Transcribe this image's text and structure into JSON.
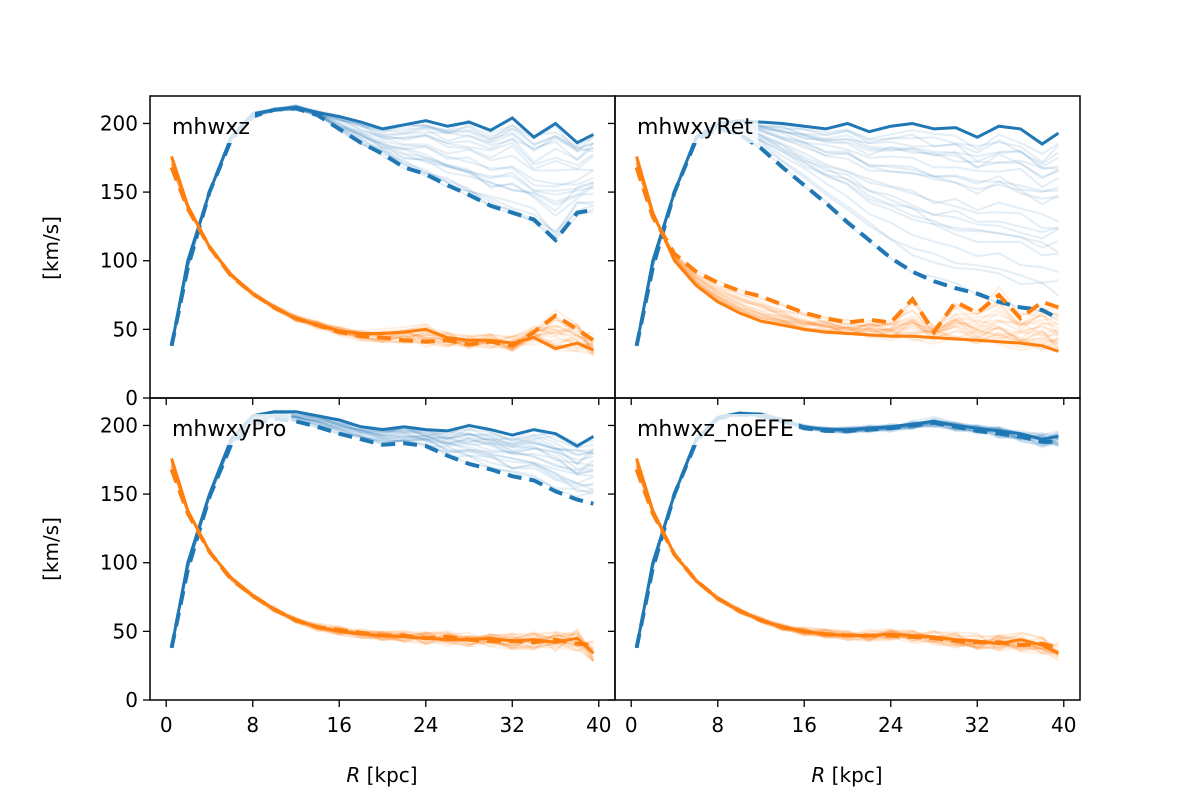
{
  "figure": {
    "y_axis_label": "[km/s]",
    "x_axis_label_italic": "R",
    "x_axis_label_rest": " [kpc]"
  },
  "chart_data": {
    "type": "line",
    "layout": "2x2 grid, shared axes",
    "x_label": "R [kpc]",
    "y_label": "[km/s]",
    "xlim": [
      -1.5,
      41.5
    ],
    "ylim": [
      0,
      220
    ],
    "x_ticks": [
      0,
      8,
      16,
      24,
      32,
      40
    ],
    "y_ticks": [
      0,
      50,
      100,
      150,
      200
    ],
    "colors": {
      "rising_series": "#1f77b4",
      "falling_series": "#ff7f0e"
    },
    "panels": [
      {
        "title": "mhwxz",
        "x": [
          0.5,
          2,
          4,
          6,
          8,
          10,
          12,
          14,
          16,
          18,
          20,
          22,
          24,
          26,
          28,
          30,
          32,
          34,
          36,
          38,
          39.5
        ],
        "series": [
          {
            "color": "blue",
            "style": "solid",
            "values": [
              38,
              100,
              150,
              190,
              207,
              210,
              212,
              208,
              205,
              201,
              196,
              199,
              202,
              198,
              201,
              195,
              204,
              190,
              200,
              186,
              192
            ]
          },
          {
            "color": "blue",
            "style": "dashed",
            "values": [
              38,
              95,
              150,
              188,
              205,
              210,
              211,
              206,
              196,
              186,
              178,
              168,
              163,
              155,
              148,
              140,
              135,
              130,
              115,
              135,
              137
            ]
          },
          {
            "color": "orange",
            "style": "solid",
            "values": [
              176,
              140,
              110,
              90,
              76,
              66,
              58,
              53,
              49,
              47,
              47,
              48,
              50,
              44,
              42,
              42,
              40,
              44,
              36,
              40,
              35
            ]
          },
          {
            "color": "orange",
            "style": "dashed",
            "values": [
              168,
              138,
              110,
              89,
              76,
              66,
              58,
              53,
              48,
              45,
              44,
              42,
              41,
              42,
              39,
              41,
              38,
              48,
              60,
              50,
              42
            ]
          }
        ]
      },
      {
        "title": "mhwxyRet",
        "x": [
          0.5,
          2,
          4,
          6,
          8,
          10,
          12,
          14,
          16,
          18,
          20,
          22,
          24,
          26,
          28,
          30,
          32,
          34,
          36,
          38,
          39.5
        ],
        "series": [
          {
            "color": "blue",
            "style": "solid",
            "values": [
              38,
              100,
              150,
              190,
              200,
              202,
              201,
              200,
              198,
              196,
              200,
              194,
              198,
              200,
              196,
              197,
              190,
              198,
              196,
              185,
              193
            ]
          },
          {
            "color": "blue",
            "style": "dashed",
            "values": [
              38,
              95,
              150,
              188,
              196,
              192,
              182,
              168,
              155,
              142,
              128,
              115,
              102,
              92,
              85,
              80,
              76,
              70,
              66,
              64,
              58
            ]
          },
          {
            "color": "orange",
            "style": "solid",
            "values": [
              176,
              135,
              100,
              82,
              70,
              62,
              56,
              53,
              50,
              48,
              47,
              46,
              45,
              45,
              44,
              43,
              42,
              41,
              40,
              38,
              34
            ]
          },
          {
            "color": "orange",
            "style": "dashed",
            "values": [
              168,
              132,
              105,
              92,
              84,
              78,
              74,
              68,
              62,
              58,
              55,
              57,
              55,
              72,
              48,
              70,
              62,
              75,
              58,
              70,
              66
            ]
          }
        ]
      },
      {
        "title": "mhwxyPro",
        "x": [
          0.5,
          2,
          4,
          6,
          8,
          10,
          12,
          14,
          16,
          18,
          20,
          22,
          24,
          26,
          28,
          30,
          32,
          34,
          36,
          38,
          39.5
        ],
        "series": [
          {
            "color": "blue",
            "style": "solid",
            "values": [
              38,
              100,
              150,
              190,
              207,
              210,
              210,
              207,
              204,
              199,
              197,
              199,
              197,
              196,
              200,
              197,
              193,
              197,
              194,
              185,
              192
            ]
          },
          {
            "color": "blue",
            "style": "dashed",
            "values": [
              38,
              95,
              148,
              186,
              200,
              205,
              203,
              199,
              194,
              190,
              186,
              187,
              185,
              178,
              172,
              168,
              163,
              160,
              152,
              146,
              143
            ]
          },
          {
            "color": "orange",
            "style": "solid",
            "values": [
              176,
              138,
              108,
              89,
              76,
              66,
              58,
              53,
              50,
              48,
              47,
              46,
              45,
              44,
              44,
              45,
              43,
              44,
              42,
              45,
              34
            ]
          },
          {
            "color": "orange",
            "style": "dashed",
            "values": [
              168,
              136,
              108,
              88,
              76,
              66,
              58,
              53,
              51,
              49,
              47,
              47,
              45,
              46,
              44,
              43,
              43,
              42,
              44,
              41,
              40
            ]
          }
        ]
      },
      {
        "title": "mhwxz_noEFE",
        "x": [
          0.5,
          2,
          4,
          6,
          8,
          10,
          12,
          14,
          16,
          18,
          20,
          22,
          24,
          26,
          28,
          30,
          32,
          34,
          36,
          38,
          39.5
        ],
        "series": [
          {
            "color": "blue",
            "style": "solid",
            "values": [
              38,
              100,
              150,
              190,
              206,
              209,
              208,
              204,
              199,
              197,
              197,
              198,
              199,
              201,
              203,
              200,
              198,
              196,
              194,
              190,
              192
            ]
          },
          {
            "color": "blue",
            "style": "dashed",
            "values": [
              38,
              96,
              150,
              188,
              205,
              208,
              207,
              203,
              198,
              196,
              196,
              197,
              198,
              200,
              202,
              199,
              196,
              194,
              192,
              188,
              188
            ]
          },
          {
            "color": "orange",
            "style": "solid",
            "values": [
              176,
              138,
              106,
              87,
              74,
              65,
              58,
              53,
              50,
              48,
              47,
              47,
              48,
              47,
              46,
              44,
              43,
              41,
              44,
              40,
              34
            ]
          },
          {
            "color": "orange",
            "style": "dashed",
            "values": [
              168,
              136,
              106,
              87,
              74,
              65,
              58,
              53,
              50,
              48,
              47,
              47,
              47,
              46,
              45,
              43,
              42,
              42,
              40,
              41,
              38
            ]
          }
        ]
      }
    ]
  }
}
